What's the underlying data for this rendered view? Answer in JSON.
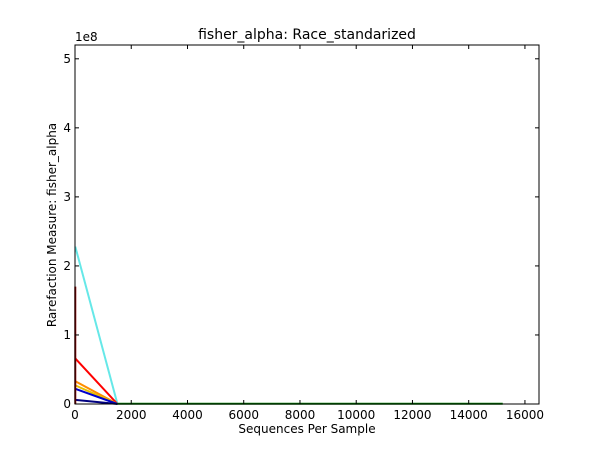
{
  "chart_data": {
    "type": "line",
    "title": "fisher_alpha: Race_standarized",
    "xlabel": "Sequences Per Sample",
    "ylabel": "Rarefaction Measure: fisher_alpha",
    "y_multiplier_label": "1e8",
    "xlim": [
      0,
      16500
    ],
    "ylim": [
      0,
      5.2
    ],
    "x_ticks": [
      0,
      2000,
      4000,
      6000,
      8000,
      10000,
      12000,
      14000,
      16000
    ],
    "x_tick_labels": [
      "0",
      "2000",
      "4000",
      "6000",
      "8000",
      "10000",
      "12000",
      "14000",
      "16000"
    ],
    "y_ticks": [
      0,
      1,
      2,
      3,
      4,
      5
    ],
    "y_tick_labels": [
      "0",
      "1",
      "2",
      "3",
      "4",
      "5"
    ],
    "grid": false,
    "series": [
      {
        "color": "#66e8e8",
        "points": [
          [
            10,
            2.28
          ],
          [
            1510,
            0.0
          ]
        ]
      },
      {
        "color": "#ff0000",
        "points": [
          [
            10,
            0.66
          ],
          [
            1510,
            0.0
          ]
        ]
      },
      {
        "color": "#ff8c00",
        "points": [
          [
            10,
            0.33
          ],
          [
            1510,
            0.0
          ]
        ]
      },
      {
        "color": "#e8c000",
        "points": [
          [
            10,
            0.27
          ],
          [
            1510,
            0.0
          ]
        ]
      },
      {
        "color": "#0000cc",
        "points": [
          [
            10,
            0.22
          ],
          [
            1510,
            0.0
          ]
        ]
      },
      {
        "color": "#000080",
        "points": [
          [
            10,
            0.06
          ],
          [
            1510,
            0.0
          ]
        ]
      },
      {
        "color": "#8b0000",
        "points": [
          [
            10,
            1.7
          ],
          [
            10,
            0.0
          ]
        ]
      },
      {
        "color": "#008000",
        "points": [
          [
            1510,
            0.004
          ],
          [
            15210,
            0.003
          ]
        ]
      }
    ]
  }
}
